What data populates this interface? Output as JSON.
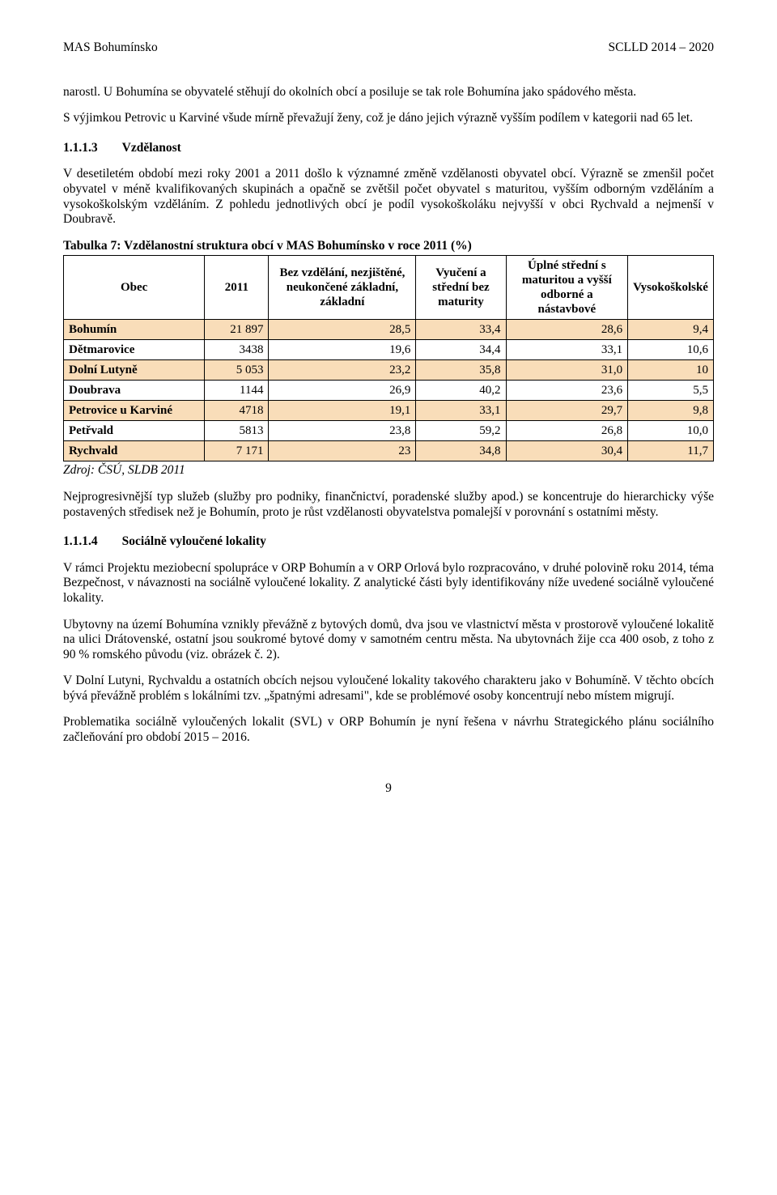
{
  "header": {
    "left": "MAS Bohumínsko",
    "right": "SCLLD 2014 – 2020"
  },
  "intro": {
    "p1": "narostl. U Bohumína se obyvatelé stěhují do okolních obcí a posiluje se tak role Bohumína jako spádového města.",
    "p2": "S výjimkou Petrovic u Karviné všude mírně převažují ženy, což je dáno jejich výrazně vyšším podílem v kategorii nad 65 let."
  },
  "section1": {
    "num": "1.1.1.3",
    "title": "Vzdělanost",
    "p1": "V desetiletém období mezi roky 2001 a 2011 došlo k významné změně vzdělanosti obyvatel obcí. Výrazně se zmenšil počet obyvatel v méně kvalifikovaných skupinách a opačně se zvětšil počet obyvatel s maturitou, vyšším odborným vzděláním a vysokoškolským vzděláním. Z pohledu jednotlivých obcí je podíl vysokoškoláku nejvyšší v obci Rychvald a nejmenší v Doubravě."
  },
  "table": {
    "caption": "Tabulka 7: Vzdělanostní struktura obcí v MAS Bohumínsko v roce 2011 (%)",
    "columns": {
      "c0": "Obec",
      "c1": "2011",
      "c2": "Bez vzdělání, nezjištěné, neukončené základní, základní",
      "c3": "Vyučení a střední bez maturity",
      "c4": "Úplné střední s maturitou a vyšší odborné a nástavbové",
      "c5": "Vysokoškolské"
    },
    "rows": [
      {
        "name": "Bohumín",
        "c1": "21 897",
        "c2": "28,5",
        "c3": "33,4",
        "c4": "28,6",
        "c5": "9,4",
        "shaded": true
      },
      {
        "name": "Dětmarovice",
        "c1": "3438",
        "c2": "19,6",
        "c3": "34,4",
        "c4": "33,1",
        "c5": "10,6",
        "shaded": false
      },
      {
        "name": "Dolní Lutyně",
        "c1": "5 053",
        "c2": "23,2",
        "c3": "35,8",
        "c4": "31,0",
        "c5": "10",
        "shaded": true
      },
      {
        "name": "Doubrava",
        "c1": "1144",
        "c2": "26,9",
        "c3": "40,2",
        "c4": "23,6",
        "c5": "5,5",
        "shaded": false
      },
      {
        "name": "Petrovice u Karviné",
        "c1": "4718",
        "c2": "19,1",
        "c3": "33,1",
        "c4": "29,7",
        "c5": "9,8",
        "shaded": true
      },
      {
        "name": "Petřvald",
        "c1": "5813",
        "c2": "23,8",
        "c3": "59,2",
        "c4": "26,8",
        "c5": "10,0",
        "shaded": false
      },
      {
        "name": "Rychvald",
        "c1": "7 171",
        "c2": "23",
        "c3": "34,8",
        "c4": "30,4",
        "c5": "11,7",
        "shaded": true
      }
    ],
    "source": "Zdroj: ČSÚ, SLDB 2011",
    "col_widths": [
      "22%",
      "10%",
      "23%",
      "14%",
      "19%",
      "12%"
    ],
    "shaded_bg": "#f9ddb9",
    "border_color": "#000000"
  },
  "after_table": {
    "p1": "Nejprogresivnější typ služeb (služby pro podniky, finančnictví, poradenské služby apod.) se koncentruje do hierarchicky výše postavených středisek než je Bohumín, proto je růst vzdělanosti obyvatelstva pomalejší v porovnání s ostatními městy."
  },
  "section2": {
    "num": "1.1.1.4",
    "title": "Sociálně vyloučené lokality",
    "p1": "V rámci Projektu meziobecní spolupráce v ORP Bohumín a v ORP Orlová bylo rozpracováno, v druhé polovině roku 2014, téma Bezpečnost, v návaznosti na sociálně vyloučené lokality. Z analytické části byly identifikovány níže uvedené sociálně vyloučené lokality.",
    "p2": "Ubytovny na území Bohumína vznikly převážně z bytových domů, dva jsou ve vlastnictví města v prostorově vyloučené lokalitě na ulici Drátovenské, ostatní jsou soukromé bytové domy v samotném centru města. Na ubytovnách žije cca 400 osob, z toho z 90 % romského původu (viz. obrázek č. 2).",
    "p3": "V Dolní Lutyni, Rychvaldu a ostatních obcích nejsou vyloučené lokality takového charakteru jako v Bohumíně. V těchto obcích bývá převážně problém s lokálními tzv. „špatnými adresami\", kde se problémové osoby koncentrují nebo místem migrují.",
    "p4": "Problematika sociálně vyloučených lokalit (SVL) v ORP Bohumín je nyní řešena v návrhu Strategického plánu sociálního začleňování pro období 2015 – 2016."
  },
  "page_number": "9"
}
